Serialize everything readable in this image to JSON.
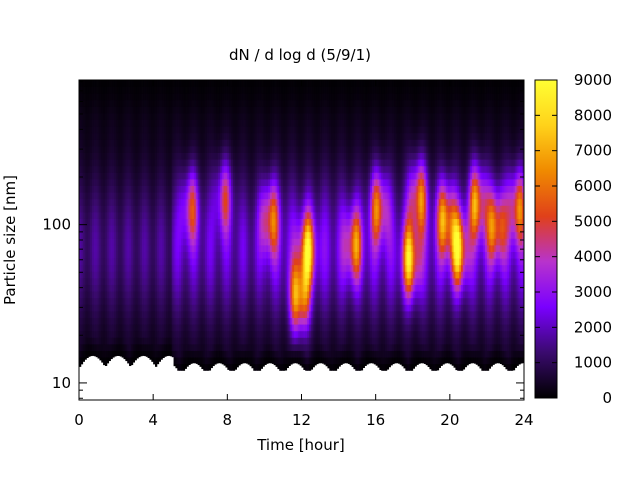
{
  "chart_data": {
    "type": "heatmap",
    "title": "dN / d log d (5/9/1)",
    "xlabel": "Time [hour]",
    "ylabel": "Particle size [nm]",
    "x_range": [
      0,
      24
    ],
    "y_range": [
      7.8,
      820
    ],
    "y_scale": "log",
    "x_ticks": [
      0,
      4,
      8,
      12,
      16,
      20,
      24
    ],
    "y_ticks": [
      10,
      100
    ],
    "colorbar": {
      "range": [
        0,
        9000
      ],
      "ticks": [
        0,
        1000,
        2000,
        3000,
        4000,
        5000,
        6000,
        7000,
        8000,
        9000
      ],
      "palette": [
        "#000000",
        "#3a0a6e",
        "#7a00ff",
        "#b833cc",
        "#e0401a",
        "#f08a00",
        "#ffd21a",
        "#ffff33"
      ]
    },
    "size_range_nm": [
      12,
      820
    ],
    "time_resolution_hours": 0.1,
    "features": [
      {
        "time": 10.3,
        "size_nm": 110,
        "value": 5500
      },
      {
        "time": 11.9,
        "size_nm": 35,
        "value": 8200
      },
      {
        "time": 12.3,
        "size_nm": 70,
        "value": 6500
      },
      {
        "time": 14.8,
        "size_nm": 75,
        "value": 5200
      },
      {
        "time": 16.2,
        "size_nm": 130,
        "value": 5600
      },
      {
        "time": 17.9,
        "size_nm": 60,
        "value": 6800
      },
      {
        "time": 18.3,
        "size_nm": 150,
        "value": 6200
      },
      {
        "time": 19.8,
        "size_nm": 110,
        "value": 6800
      },
      {
        "time": 20.5,
        "size_nm": 70,
        "value": 7000
      },
      {
        "time": 21.5,
        "size_nm": 140,
        "value": 6500
      },
      {
        "time": 22.5,
        "size_nm": 100,
        "value": 6200
      },
      {
        "time": 23.6,
        "size_nm": 130,
        "value": 5800
      },
      {
        "time": 6.0,
        "size_nm": 130,
        "value": 4200
      },
      {
        "time": 7.8,
        "size_nm": 150,
        "value": 3900
      }
    ]
  }
}
